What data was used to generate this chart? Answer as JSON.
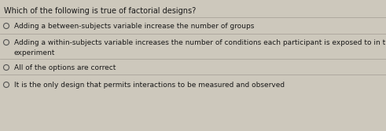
{
  "title": "Which of the following is true of factorial designs?",
  "options": [
    "Adding a between-subjects variable increase the number of groups",
    "Adding a within-subjects variable increases the number of conditions each participant is exposed to in the\nexperiment",
    "All of the options are correct",
    "It is the only design that permits interactions to be measured and observed"
  ],
  "background_color": "#cdc8bc",
  "title_fontsize": 7.0,
  "option_fontsize": 6.5,
  "title_color": "#1a1a1a",
  "option_color": "#1a1a1a",
  "circle_color": "#555555",
  "line_color": "#aaa49a"
}
